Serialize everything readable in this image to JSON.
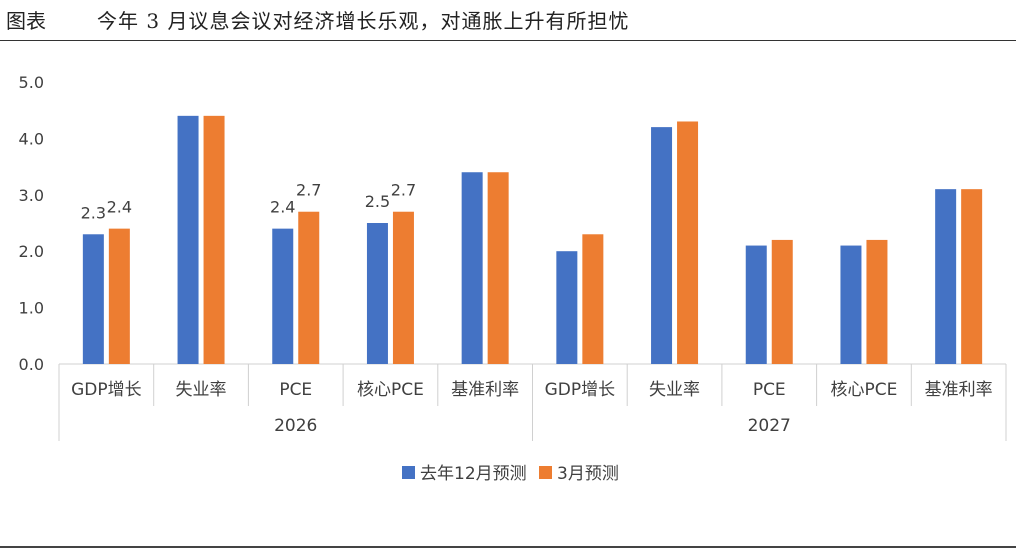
{
  "header": {
    "label": "图表",
    "title": "今年 3 月议息会议对经济增长乐观，对通胀上升有所担忧"
  },
  "chart_data": {
    "type": "bar",
    "groups": [
      "2026",
      "2027"
    ],
    "categories": [
      "GDP增长",
      "失业率",
      "PCE",
      "核心PCE",
      "基准利率"
    ],
    "series": [
      {
        "name": "去年12月预测",
        "color": "#4472C4",
        "values": [
          [
            2.3,
            4.4,
            2.4,
            2.5,
            3.4
          ],
          [
            2.0,
            4.2,
            2.1,
            2.1,
            3.1
          ]
        ]
      },
      {
        "name": "3月预测",
        "color": "#ED7D31",
        "values": [
          [
            2.4,
            4.4,
            2.7,
            2.7,
            3.4
          ],
          [
            2.3,
            4.3,
            2.2,
            2.2,
            3.1
          ]
        ]
      }
    ],
    "data_labels": {
      "2026": {
        "GDP增长": [
          "2.3",
          "2.4"
        ],
        "PCE": [
          "2.4",
          "2.7"
        ],
        "核心PCE": [
          "2.5",
          "2.7"
        ]
      }
    },
    "yticks": [
      "0.0",
      "1.0",
      "2.0",
      "3.0",
      "4.0",
      "5.0"
    ],
    "ylim": [
      0,
      5
    ],
    "grid": false,
    "legend_position": "bottom"
  }
}
